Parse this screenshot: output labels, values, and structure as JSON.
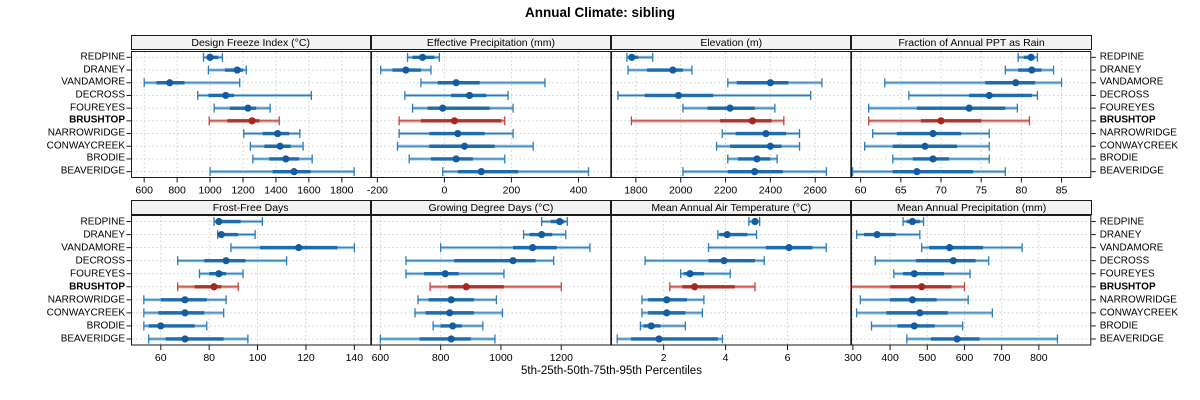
{
  "title": "Annual Climate: sibling",
  "caption": "5th-25th-50th-75th-95th Percentiles",
  "percentile_labels": [
    "5th",
    "25th",
    "50th",
    "75th",
    "95th"
  ],
  "sites": [
    "REDPINE",
    "DRANEY",
    "VANDAMORE",
    "DECROSS",
    "FOUREYES",
    "BRUSHTOP",
    "NARROWRIDGE",
    "CONWAYCREEK",
    "BRODIE",
    "BEAVERIDGE"
  ],
  "highlight_site": "BRUSHTOP",
  "colors": {
    "blue_line": "#2b7cb9",
    "blue_band": "#9fc7e2",
    "blue_seg": "#1d6cad",
    "blue_dot": "#145c9e",
    "red_line": "#c4463a",
    "red_band": "#e7aca4",
    "red_seg": "#b13328",
    "red_dot": "#a6271d",
    "strip_bg": "#f2f2f2",
    "panel_border": "#1a1a1a",
    "grid": "#c9c9c9",
    "text": "#000000"
  },
  "chart_data": [
    {
      "type": "dotplot",
      "title": "Design Freeze Index (°C)",
      "row": 0,
      "col": 0,
      "xlim": [
        520,
        1979
      ],
      "ticks": [
        600,
        800,
        1000,
        1200,
        1400,
        1600,
        1800
      ],
      "series": [
        {
          "name": "REDPINE",
          "percentiles": [
            960,
            980,
            1000,
            1050,
            1075
          ]
        },
        {
          "name": "DRANEY",
          "percentiles": [
            990,
            1090,
            1165,
            1200,
            1220
          ]
        },
        {
          "name": "VANDAMORE",
          "percentiles": [
            600,
            675,
            755,
            845,
            1180
          ]
        },
        {
          "name": "DECROSS",
          "percentiles": [
            925,
            990,
            1095,
            1145,
            1615
          ]
        },
        {
          "name": "FOUREYES",
          "percentiles": [
            1025,
            1120,
            1230,
            1280,
            1365
          ]
        },
        {
          "name": "BRUSHTOP",
          "percentiles": [
            995,
            1105,
            1255,
            1300,
            1420
          ]
        },
        {
          "name": "NARROWRIDGE",
          "percentiles": [
            1205,
            1320,
            1410,
            1480,
            1545
          ]
        },
        {
          "name": "CONWAYCREEK",
          "percentiles": [
            1245,
            1330,
            1425,
            1490,
            1565
          ]
        },
        {
          "name": "BRODIE",
          "percentiles": [
            1260,
            1360,
            1460,
            1540,
            1620
          ]
        },
        {
          "name": "BEAVERIDGE",
          "percentiles": [
            1000,
            1380,
            1510,
            1610,
            1875
          ]
        }
      ]
    },
    {
      "type": "dotplot",
      "title": "Effective Precipitation (mm)",
      "row": 0,
      "col": 1,
      "xlim": [
        -219,
        498
      ],
      "ticks": [
        -200,
        0,
        200,
        400
      ],
      "series": [
        {
          "name": "REDPINE",
          "percentiles": [
            -110,
            -95,
            -65,
            -30,
            -15
          ]
        },
        {
          "name": "DRANEY",
          "percentiles": [
            -190,
            -155,
            -115,
            -70,
            -40
          ]
        },
        {
          "name": "VANDAMORE",
          "percentiles": [
            -70,
            -20,
            35,
            105,
            300
          ]
        },
        {
          "name": "DECROSS",
          "percentiles": [
            -118,
            20,
            75,
            125,
            190
          ]
        },
        {
          "name": "FOUREYES",
          "percentiles": [
            -95,
            -50,
            -5,
            135,
            205
          ]
        },
        {
          "name": "BRUSHTOP",
          "percentiles": [
            -135,
            -70,
            30,
            170,
            180
          ]
        },
        {
          "name": "NARROWRIDGE",
          "percentiles": [
            -135,
            -45,
            40,
            120,
            205
          ]
        },
        {
          "name": "CONWAYCREEK",
          "percentiles": [
            -140,
            -45,
            60,
            150,
            265
          ]
        },
        {
          "name": "BRODIE",
          "percentiles": [
            -105,
            -40,
            35,
            85,
            180
          ]
        },
        {
          "name": "BEAVERIDGE",
          "percentiles": [
            -5,
            40,
            110,
            220,
            430
          ]
        }
      ]
    },
    {
      "type": "dotplot",
      "title": "Elevation (m)",
      "row": 0,
      "col": 2,
      "xlim": [
        1689,
        2761
      ],
      "ticks": [
        1800,
        2000,
        2200,
        2400,
        2600
      ],
      "series": [
        {
          "name": "REDPINE",
          "percentiles": [
            1760,
            1768,
            1782,
            1810,
            1875
          ]
        },
        {
          "name": "DRANEY",
          "percentiles": [
            1765,
            1850,
            1965,
            2010,
            2050
          ]
        },
        {
          "name": "VANDAMORE",
          "percentiles": [
            2210,
            2250,
            2400,
            2480,
            2630
          ]
        },
        {
          "name": "DECROSS",
          "percentiles": [
            1720,
            1840,
            1990,
            2145,
            2580
          ]
        },
        {
          "name": "FOUREYES",
          "percentiles": [
            2010,
            2120,
            2220,
            2330,
            2420
          ]
        },
        {
          "name": "BRUSHTOP",
          "percentiles": [
            1780,
            2175,
            2320,
            2405,
            2460
          ]
        },
        {
          "name": "NARROWRIDGE",
          "percentiles": [
            2185,
            2245,
            2380,
            2470,
            2530
          ]
        },
        {
          "name": "CONWAYCREEK",
          "percentiles": [
            2160,
            2220,
            2400,
            2450,
            2530
          ]
        },
        {
          "name": "BRODIE",
          "percentiles": [
            2210,
            2255,
            2340,
            2400,
            2430
          ]
        },
        {
          "name": "BEAVERIDGE",
          "percentiles": [
            2010,
            2210,
            2330,
            2455,
            2650
          ]
        }
      ]
    },
    {
      "type": "dotplot",
      "title": "Fraction of Annual PPT as Rain",
      "row": 0,
      "col": 3,
      "xlim": [
        58.8,
        88.7
      ],
      "ticks": [
        60,
        65,
        70,
        75,
        80,
        85
      ],
      "series": [
        {
          "name": "REDPINE",
          "percentiles": [
            79.6,
            80.3,
            81.2,
            81.6,
            82
          ]
        },
        {
          "name": "DRANEY",
          "percentiles": [
            78,
            79.6,
            81.3,
            82.5,
            84
          ]
        },
        {
          "name": "VANDAMORE",
          "percentiles": [
            63,
            75.5,
            79.3,
            81.7,
            85
          ]
        },
        {
          "name": "DECROSS",
          "percentiles": [
            66,
            73.5,
            76,
            81.3,
            82
          ]
        },
        {
          "name": "FOUREYES",
          "percentiles": [
            61,
            67,
            73.5,
            78,
            79.5
          ]
        },
        {
          "name": "BRUSHTOP",
          "percentiles": [
            61,
            67.5,
            70,
            75,
            81
          ]
        },
        {
          "name": "NARROWRIDGE",
          "percentiles": [
            61.5,
            64.5,
            69,
            72.5,
            76
          ]
        },
        {
          "name": "CONWAYCREEK",
          "percentiles": [
            60.5,
            64,
            68,
            72,
            76
          ]
        },
        {
          "name": "BRODIE",
          "percentiles": [
            64,
            66.5,
            69,
            71,
            76
          ]
        },
        {
          "name": "BEAVERIDGE",
          "percentiles": [
            59,
            64,
            67,
            74,
            78
          ]
        }
      ]
    },
    {
      "type": "dotplot",
      "title": "Frost-Free Days",
      "row": 1,
      "col": 0,
      "xlim": [
        47.7,
        147
      ],
      "ticks": [
        60,
        80,
        100,
        120,
        140
      ],
      "series": [
        {
          "name": "REDPINE",
          "percentiles": [
            82,
            83,
            84,
            93,
            102
          ]
        },
        {
          "name": "DRANEY",
          "percentiles": [
            83.5,
            84.5,
            85,
            92,
            99
          ]
        },
        {
          "name": "VANDAMORE",
          "percentiles": [
            89,
            101,
            117,
            133,
            140
          ]
        },
        {
          "name": "DECROSS",
          "percentiles": [
            67,
            78,
            87,
            95,
            112
          ]
        },
        {
          "name": "FOUREYES",
          "percentiles": [
            76,
            80,
            84,
            87,
            94
          ]
        },
        {
          "name": "BRUSHTOP",
          "percentiles": [
            67,
            74,
            82,
            85,
            92
          ]
        },
        {
          "name": "NARROWRIDGE",
          "percentiles": [
            53,
            60,
            70,
            79,
            87
          ]
        },
        {
          "name": "CONWAYCREEK",
          "percentiles": [
            53,
            59,
            70,
            78,
            86
          ]
        },
        {
          "name": "BRODIE",
          "percentiles": [
            53,
            55,
            60,
            74,
            79
          ]
        },
        {
          "name": "BEAVERIDGE",
          "percentiles": [
            55,
            62,
            70,
            86,
            96
          ]
        }
      ]
    },
    {
      "type": "dotplot",
      "title": "Growing Degree Days (°C)",
      "row": 1,
      "col": 1,
      "xlim": [
        569,
        1366
      ],
      "ticks": [
        600,
        800,
        1000,
        1200
      ],
      "series": [
        {
          "name": "REDPINE",
          "percentiles": [
            1135,
            1165,
            1195,
            1210,
            1220
          ]
        },
        {
          "name": "DRANEY",
          "percentiles": [
            1075,
            1095,
            1135,
            1170,
            1215
          ]
        },
        {
          "name": "VANDAMORE",
          "percentiles": [
            800,
            1040,
            1105,
            1185,
            1295
          ]
        },
        {
          "name": "DECROSS",
          "percentiles": [
            685,
            845,
            1040,
            1115,
            1175
          ]
        },
        {
          "name": "FOUREYES",
          "percentiles": [
            685,
            745,
            815,
            860,
            1010
          ]
        },
        {
          "name": "BRUSHTOP",
          "percentiles": [
            765,
            825,
            885,
            1010,
            1200
          ]
        },
        {
          "name": "NARROWRIDGE",
          "percentiles": [
            725,
            760,
            835,
            910,
            985
          ]
        },
        {
          "name": "CONWAYCREEK",
          "percentiles": [
            715,
            750,
            830,
            910,
            1005
          ]
        },
        {
          "name": "BRODIE",
          "percentiles": [
            775,
            800,
            840,
            870,
            940
          ]
        },
        {
          "name": "BEAVERIDGE",
          "percentiles": [
            600,
            730,
            835,
            900,
            980
          ]
        }
      ]
    },
    {
      "type": "dotplot",
      "title": "Mean Annual Air Temperature (°C)",
      "row": 1,
      "col": 2,
      "xlim": [
        0.3,
        8.06
      ],
      "ticks": [
        2,
        4,
        6
      ],
      "series": [
        {
          "name": "REDPINE",
          "percentiles": [
            4.75,
            4.85,
            4.95,
            5.0,
            5.1
          ]
        },
        {
          "name": "DRANEY",
          "percentiles": [
            3.75,
            3.8,
            4.05,
            4.7,
            5.0
          ]
        },
        {
          "name": "VANDAMORE",
          "percentiles": [
            3.45,
            5.3,
            6.05,
            6.8,
            7.25
          ]
        },
        {
          "name": "DECROSS",
          "percentiles": [
            1.4,
            3.45,
            3.95,
            4.95,
            5.25
          ]
        },
        {
          "name": "FOUREYES",
          "percentiles": [
            2.55,
            2.65,
            2.85,
            3.3,
            4.15
          ]
        },
        {
          "name": "BRUSHTOP",
          "percentiles": [
            2.2,
            2.6,
            3.0,
            4.3,
            4.95
          ]
        },
        {
          "name": "NARROWRIDGE",
          "percentiles": [
            1.3,
            1.5,
            2.1,
            2.75,
            3.3
          ]
        },
        {
          "name": "CONWAYCREEK",
          "percentiles": [
            1.3,
            1.5,
            2.1,
            2.7,
            3.25
          ]
        },
        {
          "name": "BRODIE",
          "percentiles": [
            1.25,
            1.35,
            1.6,
            1.9,
            2.7
          ]
        },
        {
          "name": "BEAVERIDGE",
          "percentiles": [
            0.5,
            0.95,
            1.85,
            3.75,
            3.9
          ]
        }
      ]
    },
    {
      "type": "dotplot",
      "title": "Mean Annual Precipitation (mm)",
      "row": 1,
      "col": 3,
      "xlim": [
        294.9,
        941
      ],
      "ticks": [
        300,
        400,
        500,
        600,
        700,
        800
      ],
      "series": [
        {
          "name": "REDPINE",
          "percentiles": [
            435,
            445,
            460,
            480,
            490
          ]
        },
        {
          "name": "DRANEY",
          "percentiles": [
            310,
            330,
            365,
            415,
            480
          ]
        },
        {
          "name": "VANDAMORE",
          "percentiles": [
            485,
            505,
            560,
            650,
            755
          ]
        },
        {
          "name": "DECROSS",
          "percentiles": [
            360,
            470,
            570,
            630,
            665
          ]
        },
        {
          "name": "FOUREYES",
          "percentiles": [
            410,
            435,
            465,
            545,
            615
          ]
        },
        {
          "name": "BRUSHTOP",
          "percentiles": [
            295,
            400,
            485,
            565,
            600
          ]
        },
        {
          "name": "NARROWRIDGE",
          "percentiles": [
            320,
            400,
            460,
            525,
            610
          ]
        },
        {
          "name": "CONWAYCREEK",
          "percentiles": [
            310,
            390,
            480,
            555,
            675
          ]
        },
        {
          "name": "BRODIE",
          "percentiles": [
            350,
            420,
            465,
            520,
            595
          ]
        },
        {
          "name": "BEAVERIDGE",
          "percentiles": [
            445,
            510,
            580,
            640,
            850
          ]
        }
      ]
    }
  ]
}
